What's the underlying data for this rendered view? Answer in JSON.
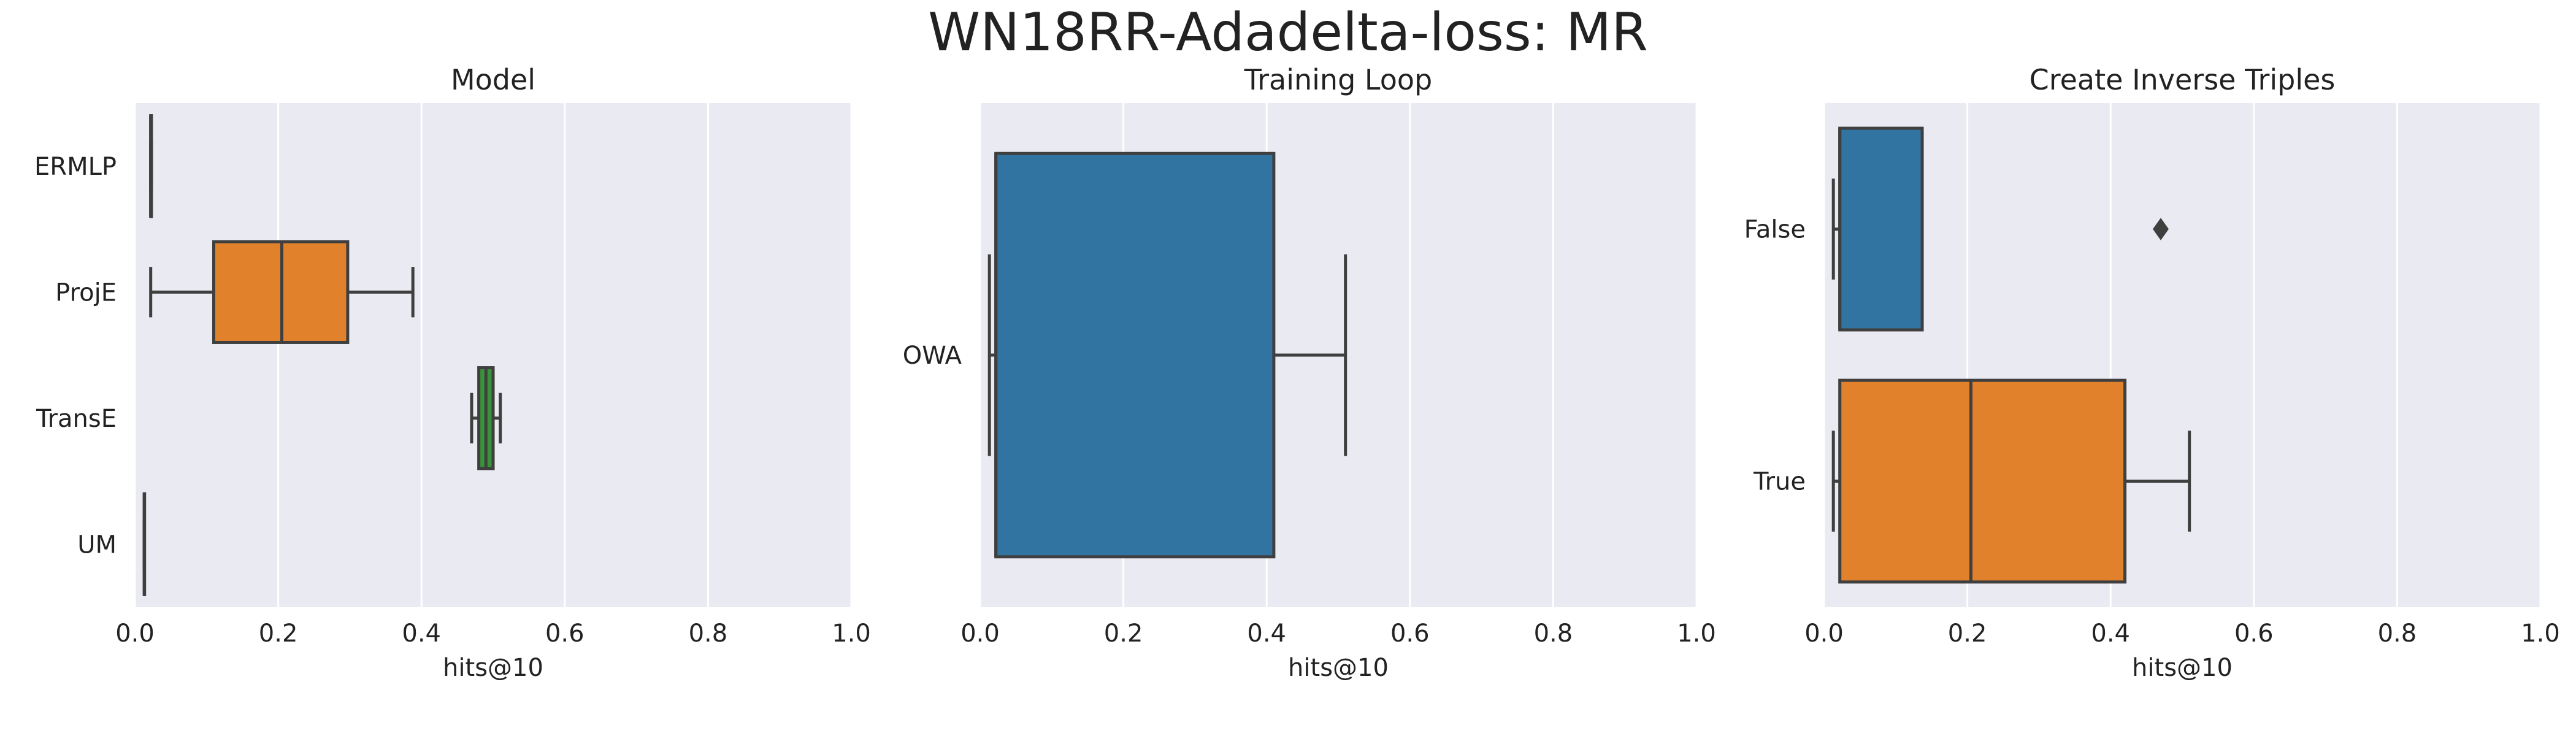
{
  "figure": {
    "title": "WN18RR-Adadelta-loss: MR"
  },
  "chart_data": [
    {
      "type": "boxplot",
      "orientation": "horizontal",
      "title": "Model",
      "xlabel": "hits@10",
      "ylabel": "",
      "xlim": [
        0.0,
        1.0
      ],
      "xticks": [
        "0.0",
        "0.2",
        "0.4",
        "0.6",
        "0.8",
        "1.0"
      ],
      "grid": "vertical",
      "categories": [
        "ERMLP",
        "ProjE",
        "TransE",
        "UM"
      ],
      "boxes": [
        {
          "category": "ERMLP",
          "color": "#3274a1",
          "whisker_low": 0.022,
          "q1": 0.022,
          "median": 0.022,
          "q3": 0.023,
          "whisker_high": 0.023,
          "outliers": []
        },
        {
          "category": "ProjE",
          "color": "#e1812c",
          "whisker_low": 0.022,
          "q1": 0.11,
          "median": 0.205,
          "q3": 0.297,
          "whisker_high": 0.388,
          "outliers": []
        },
        {
          "category": "TransE",
          "color": "#3a923a",
          "whisker_low": 0.47,
          "q1": 0.48,
          "median": 0.49,
          "q3": 0.5,
          "whisker_high": 0.51,
          "outliers": []
        },
        {
          "category": "UM",
          "color": "#c03d3e",
          "whisker_low": 0.013,
          "q1": 0.013,
          "median": 0.013,
          "q3": 0.013,
          "whisker_high": 0.013,
          "outliers": []
        }
      ]
    },
    {
      "type": "boxplot",
      "orientation": "horizontal",
      "title": "Training Loop",
      "xlabel": "hits@10",
      "ylabel": "",
      "xlim": [
        0.0,
        1.0
      ],
      "xticks": [
        "0.0",
        "0.2",
        "0.4",
        "0.6",
        "0.8",
        "1.0"
      ],
      "grid": "vertical",
      "categories": [
        "OWA"
      ],
      "boxes": [
        {
          "category": "OWA",
          "color": "#3274a1",
          "whisker_low": 0.013,
          "q1": 0.022,
          "median": 0.022,
          "q3": 0.41,
          "whisker_high": 0.51,
          "outliers": []
        }
      ]
    },
    {
      "type": "boxplot",
      "orientation": "horizontal",
      "title": "Create Inverse Triples",
      "xlabel": "hits@10",
      "ylabel": "",
      "xlim": [
        0.0,
        1.0
      ],
      "xticks": [
        "0.0",
        "0.2",
        "0.4",
        "0.6",
        "0.8",
        "1.0"
      ],
      "grid": "vertical",
      "categories": [
        "False",
        "True"
      ],
      "boxes": [
        {
          "category": "False",
          "color": "#3274a1",
          "whisker_low": 0.013,
          "q1": 0.022,
          "median": 0.022,
          "q3": 0.137,
          "whisker_high": 0.137,
          "outliers": [
            0.47
          ]
        },
        {
          "category": "True",
          "color": "#e1812c",
          "whisker_low": 0.013,
          "q1": 0.022,
          "median": 0.205,
          "q3": 0.42,
          "whisker_high": 0.51,
          "outliers": []
        }
      ]
    }
  ]
}
